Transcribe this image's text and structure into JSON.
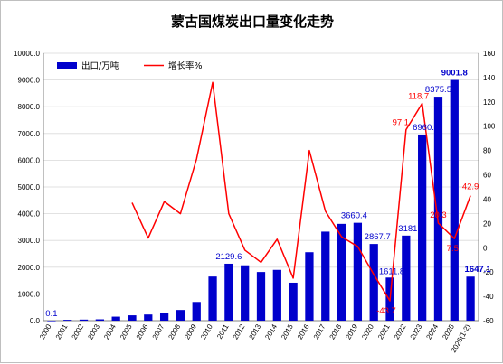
{
  "chart_data": {
    "type": "bar",
    "title": "蒙古国煤炭出口量变化走势",
    "categories": [
      "2000",
      "2001",
      "2002",
      "2003",
      "2004",
      "2005",
      "2006",
      "2007",
      "2008",
      "2009",
      "2010",
      "2011",
      "2012",
      "2013",
      "2014",
      "2015",
      "2016",
      "2017",
      "2018",
      "2019",
      "2020",
      "2021",
      "2022",
      "2023",
      "2024",
      "2025",
      "2026(1-2)"
    ],
    "series": [
      {
        "name": "出口/万吨",
        "type": "bar",
        "axis": "left",
        "color": "#0000cc",
        "values": [
          0.1,
          30,
          40,
          50,
          150,
          200,
          230,
          290,
          400,
          700,
          1650,
          2129.6,
          2070,
          1820,
          1900,
          1420,
          2560,
          3330,
          3620,
          3660.4,
          2867.7,
          1611.8,
          3181.4,
          6960.8,
          8375.5,
          9001.8,
          1647.1
        ]
      },
      {
        "name": "增长率%",
        "type": "line",
        "axis": "right",
        "color": "#ff0000",
        "values": [
          null,
          null,
          null,
          null,
          null,
          37,
          8,
          38,
          28,
          73,
          136,
          28,
          -2,
          -12,
          7,
          -25,
          80,
          30,
          9,
          1,
          -22,
          -43.7,
          97.1,
          118.7,
          20.3,
          7.5,
          42.9
        ]
      }
    ],
    "y_left": {
      "min": 0,
      "max": 10000,
      "step": 1000,
      "tick_decimals": 1
    },
    "y_right": {
      "min": -60,
      "max": 160,
      "step": 20
    },
    "data_labels": [
      {
        "series": 0,
        "index": 0,
        "text": "0.1",
        "color": "#0000cc"
      },
      {
        "series": 0,
        "index": 11,
        "text": "2129.6",
        "color": "#0000cc"
      },
      {
        "series": 0,
        "index": 19,
        "text": "3660.4",
        "color": "#0000cc"
      },
      {
        "series": 0,
        "index": 20,
        "text": "2867.7",
        "color": "#0000cc"
      },
      {
        "series": 0,
        "index": 21,
        "text": "1611.8",
        "color": "#0000cc"
      },
      {
        "series": 0,
        "index": 22,
        "text": "3181.4",
        "color": "#0000cc"
      },
      {
        "series": 0,
        "index": 23,
        "text": "6960.8",
        "color": "#0000cc"
      },
      {
        "series": 0,
        "index": 24,
        "text": "8375.5",
        "color": "#0000cc"
      },
      {
        "series": 0,
        "index": 25,
        "text": "9001.8",
        "color": "#0000cc"
      },
      {
        "series": 0,
        "index": 26,
        "text": "1647.1",
        "color": "#0000cc"
      },
      {
        "series": 1,
        "index": 21,
        "text": "-43.7",
        "color": "#ff0000"
      },
      {
        "series": 1,
        "index": 22,
        "text": "97.1",
        "color": "#ff0000"
      },
      {
        "series": 1,
        "index": 23,
        "text": "118.7",
        "color": "#ff0000"
      },
      {
        "series": 1,
        "index": 24,
        "text": "20.3",
        "color": "#ff0000"
      },
      {
        "series": 1,
        "index": 25,
        "text": "7.5",
        "color": "#ff0000"
      },
      {
        "series": 1,
        "index": 26,
        "text": "42.9",
        "color": "#ff0000"
      }
    ],
    "legend_position": "top-left",
    "grid": true
  }
}
